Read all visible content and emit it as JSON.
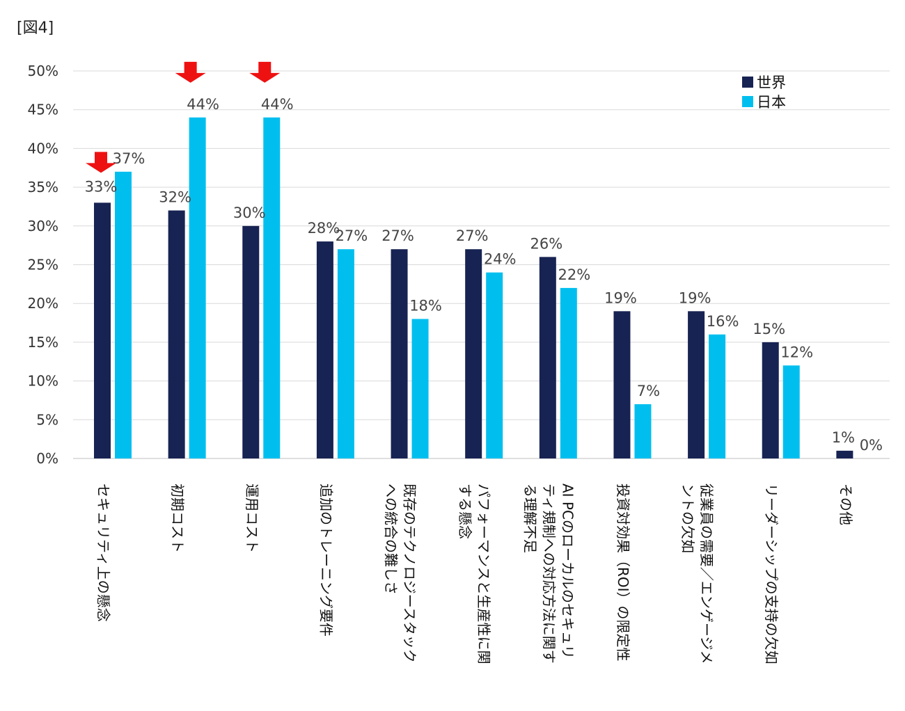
{
  "figure_label": "[図4]",
  "colors": {
    "world": "#172352",
    "japan": "#00bfef",
    "grid": "#d9d9d9",
    "arrow": "#ee1111"
  },
  "chart_data": {
    "type": "bar",
    "title": "",
    "xlabel": "",
    "ylabel": "",
    "ylim": [
      0,
      50
    ],
    "yticks": [
      "0%",
      "5%",
      "10%",
      "15%",
      "20%",
      "25%",
      "30%",
      "35%",
      "40%",
      "45%",
      "50%"
    ],
    "grid": true,
    "legend_position": "top-right",
    "categories": [
      "セキュリティ上の懸念",
      "初期コスト",
      "運用コスト",
      "追加のトレーニング要件",
      "既存のテクノロジースタックへの統合の難しさ",
      "パフォーマンスと生産性に関する懸念",
      "AI PCのローカルのセキュリティ規制への対応方法に関する理解不足",
      "投資対効果（ROI）の限定性",
      "従業員の需要／エンゲージメントの欠如",
      "リーダーシップの支持の欠如",
      "その他"
    ],
    "category_lines": [
      [
        "セキュリティ上の懸念"
      ],
      [
        "初期コスト"
      ],
      [
        "運用コスト"
      ],
      [
        "追加のトレーニング要件"
      ],
      [
        "既存のテクノロジースタック",
        "への統合の難しさ"
      ],
      [
        "パフォーマンスと生産性に関",
        "する懸念"
      ],
      [
        "AI PCのローカルのセキュリ",
        "ティ規制への対応方法に関す",
        "る理解不足"
      ],
      [
        "投資対効果（ROI）の限定性"
      ],
      [
        "従業員の需要／エンゲージメ",
        "ントの欠如"
      ],
      [
        "リーダーシップの支持の欠如"
      ],
      [
        "その他"
      ]
    ],
    "series": [
      {
        "name": "世界",
        "values": [
          33,
          32,
          30,
          28,
          27,
          27,
          26,
          19,
          19,
          15,
          1
        ],
        "labels": [
          "33%",
          "32%",
          "30%",
          "28%",
          "27%",
          "27%",
          "26%",
          "19%",
          "19%",
          "15%",
          "1%"
        ]
      },
      {
        "name": "日本",
        "values": [
          37,
          44,
          44,
          27,
          18,
          24,
          22,
          7,
          16,
          12,
          0
        ],
        "labels": [
          "37%",
          "44%",
          "44%",
          "27%",
          "18%",
          "24%",
          "22%",
          "7%",
          "16%",
          "12%",
          "0%"
        ]
      }
    ],
    "highlight_arrows": [
      0,
      1,
      2
    ]
  }
}
